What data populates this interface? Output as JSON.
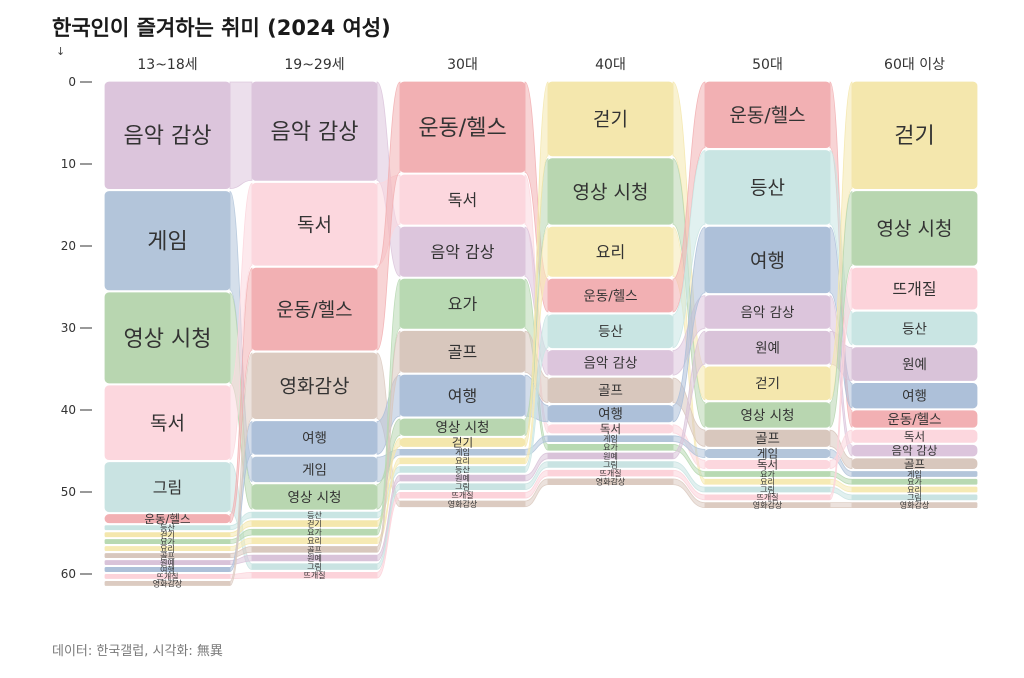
{
  "title": "한국인이 즐겨하는 취미 (2024 여성)",
  "y_arrow": "↓",
  "source": "데이터: 한국갤럽, 시각화: 無異",
  "chart_data": {
    "type": "sankey-bump",
    "title": "한국인이 즐겨하는 취미 (2024 여성)",
    "ylim": [
      0,
      63
    ],
    "y_ticks": [
      0,
      10,
      20,
      30,
      40,
      50,
      60
    ],
    "groups": [
      "13~18세",
      "19~29세",
      "30대",
      "40대",
      "50대",
      "60대 이상"
    ],
    "colors": {
      "음악 감상": "#dcc5dc",
      "게임": "#b3c5da",
      "영상 시청": "#b8d6b0",
      "독서": "#fcd7de",
      "그림": "#c9e3e2",
      "운동/헬스": "#f2b0b3",
      "영화감상": "#dccbc1",
      "여행": "#adc0d9",
      "요가": "#b8d9b2",
      "골프": "#d8c7bd",
      "걷기": "#f4e7ad",
      "요리": "#f6eab4",
      "등산": "#c9e5e3",
      "원예": "#d9c3d9",
      "뜨개질": "#fcd3da"
    },
    "columns": [
      {
        "group": "13~18세",
        "items": [
          {
            "name": "음악 감상",
            "value": 13
          },
          {
            "name": "게임",
            "value": 12
          },
          {
            "name": "영상 시청",
            "value": 11
          },
          {
            "name": "독서",
            "value": 9
          },
          {
            "name": "그림",
            "value": 6
          },
          {
            "name": "운동/헬스",
            "value": 1
          },
          {
            "name": "등산",
            "value": 0.5
          },
          {
            "name": "걷기",
            "value": 0.5
          },
          {
            "name": "요가",
            "value": 0.5
          },
          {
            "name": "요리",
            "value": 0.5
          },
          {
            "name": "골프",
            "value": 0.5
          },
          {
            "name": "원예",
            "value": 0.5
          },
          {
            "name": "여행",
            "value": 0.5
          },
          {
            "name": "뜨개질",
            "value": 0.5
          },
          {
            "name": "영화감상",
            "value": 0.5
          }
        ]
      },
      {
        "group": "19~29세",
        "items": [
          {
            "name": "음악 감상",
            "value": 12
          },
          {
            "name": "독서",
            "value": 10
          },
          {
            "name": "운동/헬스",
            "value": 10
          },
          {
            "name": "영화감상",
            "value": 8
          },
          {
            "name": "여행",
            "value": 4
          },
          {
            "name": "게임",
            "value": 3
          },
          {
            "name": "영상 시청",
            "value": 3
          },
          {
            "name": "등산",
            "value": 0.7
          },
          {
            "name": "걷기",
            "value": 0.7
          },
          {
            "name": "요가",
            "value": 0.7
          },
          {
            "name": "요리",
            "value": 0.7
          },
          {
            "name": "골프",
            "value": 0.7
          },
          {
            "name": "원예",
            "value": 0.7
          },
          {
            "name": "그림",
            "value": 0.7
          },
          {
            "name": "뜨개질",
            "value": 0.7
          }
        ]
      },
      {
        "group": "30대",
        "items": [
          {
            "name": "운동/헬스",
            "value": 11
          },
          {
            "name": "독서",
            "value": 6
          },
          {
            "name": "음악 감상",
            "value": 6
          },
          {
            "name": "요가",
            "value": 6
          },
          {
            "name": "골프",
            "value": 5
          },
          {
            "name": "여행",
            "value": 5
          },
          {
            "name": "영상 시청",
            "value": 2
          },
          {
            "name": "걷기",
            "value": 1
          },
          {
            "name": "게임",
            "value": 0.7
          },
          {
            "name": "요리",
            "value": 0.7
          },
          {
            "name": "등산",
            "value": 0.7
          },
          {
            "name": "원예",
            "value": 0.7
          },
          {
            "name": "그림",
            "value": 0.7
          },
          {
            "name": "뜨개질",
            "value": 0.7
          },
          {
            "name": "영화감상",
            "value": 0.7
          }
        ]
      },
      {
        "group": "40대",
        "items": [
          {
            "name": "걷기",
            "value": 9
          },
          {
            "name": "영상 시청",
            "value": 8
          },
          {
            "name": "요리",
            "value": 6
          },
          {
            "name": "운동/헬스",
            "value": 4
          },
          {
            "name": "등산",
            "value": 4
          },
          {
            "name": "음악 감상",
            "value": 3
          },
          {
            "name": "골프",
            "value": 3
          },
          {
            "name": "여행",
            "value": 2
          },
          {
            "name": "독서",
            "value": 1
          },
          {
            "name": "게임",
            "value": 0.7
          },
          {
            "name": "요가",
            "value": 0.7
          },
          {
            "name": "원예",
            "value": 0.7
          },
          {
            "name": "그림",
            "value": 0.7
          },
          {
            "name": "뜨개질",
            "value": 0.7
          },
          {
            "name": "영화감상",
            "value": 0.7
          }
        ]
      },
      {
        "group": "50대",
        "items": [
          {
            "name": "운동/헬스",
            "value": 8
          },
          {
            "name": "등산",
            "value": 9
          },
          {
            "name": "여행",
            "value": 8
          },
          {
            "name": "음악 감상",
            "value": 4
          },
          {
            "name": "원예",
            "value": 4
          },
          {
            "name": "걷기",
            "value": 4
          },
          {
            "name": "영상 시청",
            "value": 3
          },
          {
            "name": "골프",
            "value": 2
          },
          {
            "name": "게임",
            "value": 1
          },
          {
            "name": "독서",
            "value": 1
          },
          {
            "name": "요가",
            "value": 0.6
          },
          {
            "name": "요리",
            "value": 0.6
          },
          {
            "name": "그림",
            "value": 0.6
          },
          {
            "name": "뜨개질",
            "value": 0.6
          },
          {
            "name": "영화감상",
            "value": 0.6
          }
        ]
      },
      {
        "group": "60대 이상",
        "items": [
          {
            "name": "걷기",
            "value": 13
          },
          {
            "name": "영상 시청",
            "value": 9
          },
          {
            "name": "뜨개질",
            "value": 5
          },
          {
            "name": "등산",
            "value": 4
          },
          {
            "name": "원예",
            "value": 4
          },
          {
            "name": "여행",
            "value": 3
          },
          {
            "name": "운동/헬스",
            "value": 2
          },
          {
            "name": "독서",
            "value": 1.5
          },
          {
            "name": "음악 감상",
            "value": 1.3
          },
          {
            "name": "골프",
            "value": 1.2
          },
          {
            "name": "게임",
            "value": 0.6
          },
          {
            "name": "요가",
            "value": 0.6
          },
          {
            "name": "요리",
            "value": 0.6
          },
          {
            "name": "그림",
            "value": 0.6
          },
          {
            "name": "영화감상",
            "value": 0.6
          }
        ]
      }
    ]
  }
}
